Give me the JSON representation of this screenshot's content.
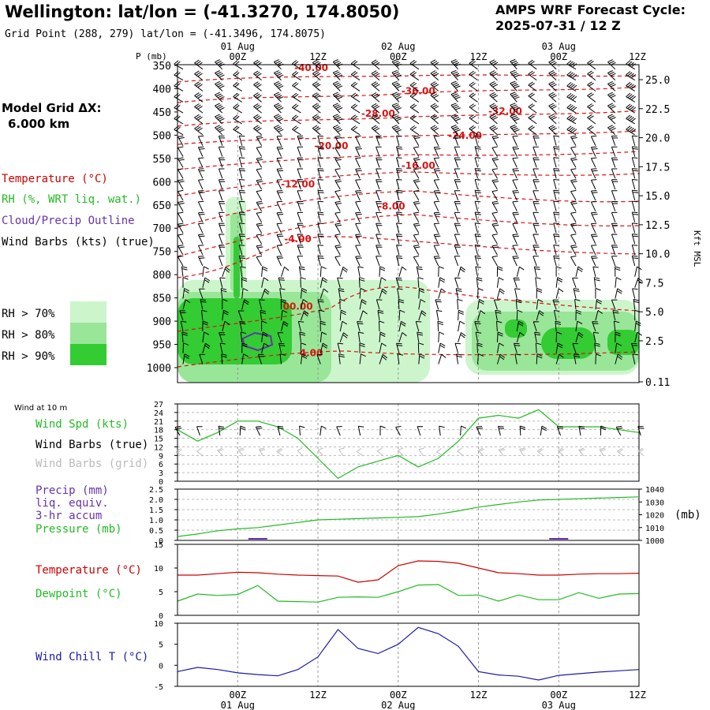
{
  "header": {
    "location_title": "Wellington:  lat/lon = (-41.3270, 174.8050)",
    "grid_point": "Grid Point (288, 279) lat/lon = (-41.3496, 174.8075)",
    "model_title": "AMPS WRF Forecast Cycle:",
    "model_cycle": "2025-07-31 / 12  Z"
  },
  "time_axis": {
    "ticks": [
      {
        "hour": 0,
        "label": "00Z",
        "date": "01 Aug"
      },
      {
        "hour": 12,
        "label": "12Z",
        "date": ""
      },
      {
        "hour": 24,
        "label": "00Z",
        "date": "02 Aug"
      },
      {
        "hour": 36,
        "label": "12Z",
        "date": ""
      },
      {
        "hour": 48,
        "label": "00Z",
        "date": "03 Aug"
      },
      {
        "hour": 60,
        "label": "12Z",
        "date": ""
      }
    ],
    "start_hour": -9,
    "end_hour": 60
  },
  "legend_left": {
    "model_grid_label": "Model Grid ΔX:",
    "model_grid_value": "6.000 km",
    "temperature": "Temperature (°C)",
    "rh": "RH (%, WRT liq. wat.)",
    "cloud": "Cloud/Precip Outline",
    "wind": "Wind Barbs (kts) (true)",
    "rh_levels": [
      {
        "label": "RH > 70%",
        "color": "#ccf5cc"
      },
      {
        "label": "RH > 80%",
        "color": "#99e699"
      },
      {
        "label": "RH > 90%",
        "color": "#33cc33"
      }
    ],
    "colors": {
      "temperature": "#cc0000",
      "rh": "#22bb22",
      "cloud": "#6633aa",
      "wind": "#000000"
    }
  },
  "panels": {
    "wind": {
      "title": "Wind at 10 m",
      "spd": "Wind Spd (kts)",
      "barbs_true": "Wind Barbs (true)",
      "barbs_grid": "Wind Barbs (grid)"
    },
    "precip": {
      "l1": "Precip (mm)",
      "l2": "liq. equiv.",
      "l3": "3-hr accum",
      "pres": "Pressure (mb)",
      "unit": "(mb)"
    },
    "temp": {
      "t": "Temperature (°C)",
      "d": "Dewpoint (°C)"
    },
    "chill": {
      "t": "Wind Chill T (°C)"
    }
  },
  "chart_data": [
    {
      "type": "contour",
      "name": "cross-section",
      "y_axis_label": "P (mb)",
      "pressure_ticks": [
        350,
        400,
        450,
        500,
        550,
        600,
        650,
        700,
        750,
        800,
        850,
        900,
        950,
        1000
      ],
      "height_axis_label": "Kft MSL",
      "height_ticks": [
        "25.0",
        "22.5",
        "20.0",
        "17.5",
        "15.0",
        "12.5",
        "10.0",
        "7.5",
        "5.0",
        "2.5",
        "0.11"
      ],
      "temperature_contour_labels": [
        {
          "label": "-40.00",
          "hour": 11,
          "p": 362
        },
        {
          "label": "-36.00",
          "hour": 27,
          "p": 412
        },
        {
          "label": "-32.00",
          "hour": 40,
          "p": 455
        },
        {
          "label": "-28.00",
          "hour": 21,
          "p": 460
        },
        {
          "label": "-24.00",
          "hour": 34,
          "p": 508
        },
        {
          "label": "-20.00",
          "hour": 14,
          "p": 530
        },
        {
          "label": "-16.00",
          "hour": 27,
          "p": 572
        },
        {
          "label": "-12.00",
          "hour": 9,
          "p": 612
        },
        {
          "label": "-8.00",
          "hour": 23,
          "p": 660
        },
        {
          "label": "-4.00",
          "hour": 9,
          "p": 730
        },
        {
          "label": "00.00",
          "hour": 9,
          "p": 875
        },
        {
          "label": "4.00",
          "hour": 11,
          "p": 975
        }
      ]
    },
    {
      "type": "line",
      "name": "wind-speed",
      "ylim": [
        0,
        27
      ],
      "yticks": [
        0,
        3,
        6,
        9,
        12,
        15,
        18,
        21,
        24,
        27
      ],
      "x_hours": [
        -9,
        -6,
        -3,
        0,
        3,
        6,
        9,
        12,
        15,
        18,
        21,
        24,
        27,
        30,
        33,
        36,
        39,
        42,
        45,
        48,
        51,
        54,
        57,
        60
      ],
      "series": [
        {
          "name": "Wind Spd (kts)",
          "color": "#22bb22",
          "values": [
            18,
            14,
            17,
            21,
            21,
            19,
            15,
            8,
            1,
            5,
            7,
            9,
            5,
            8,
            14,
            22,
            23,
            22,
            25,
            19,
            19,
            19,
            18,
            17
          ]
        }
      ]
    },
    {
      "type": "line",
      "name": "precip-pressure",
      "precip_ylim": [
        0,
        2.5
      ],
      "precip_yticks": [
        "0",
        "0.5",
        "1.0",
        "1.5",
        "2.0",
        "2.5"
      ],
      "pressure_ylim": [
        1000,
        1040
      ],
      "pressure_yticks": [
        1000,
        1010,
        1020,
        1030,
        1040
      ],
      "x_hours": [
        -9,
        -6,
        -3,
        0,
        3,
        6,
        9,
        12,
        15,
        18,
        21,
        24,
        27,
        30,
        33,
        36,
        39,
        42,
        45,
        48,
        51,
        54,
        57,
        60
      ],
      "series": [
        {
          "name": "Pressure (mb)",
          "color": "#22bb22",
          "values": [
            1003,
            1005,
            1007.5,
            1009,
            1010,
            1012,
            1014,
            1016,
            1016.5,
            1017,
            1017.5,
            1018,
            1018.5,
            1020.5,
            1023,
            1026,
            1028,
            1030,
            1031.5,
            1032,
            1032.5,
            1033,
            1033.5,
            1034
          ]
        },
        {
          "name": "Precip (mm)",
          "color": "#6633aa",
          "values": [
            0,
            0,
            0,
            0,
            0.02,
            0,
            0,
            0,
            0,
            0,
            0,
            0,
            0,
            0,
            0,
            0,
            0,
            0,
            0,
            0.02,
            0,
            0,
            0,
            0
          ]
        }
      ]
    },
    {
      "type": "line",
      "name": "temperature-dewpoint",
      "ylim": [
        0,
        15
      ],
      "yticks": [
        0,
        5,
        10,
        15
      ],
      "x_hours": [
        -9,
        -6,
        -3,
        0,
        3,
        6,
        9,
        12,
        15,
        18,
        21,
        24,
        27,
        30,
        33,
        36,
        39,
        42,
        45,
        48,
        51,
        54,
        57,
        60
      ],
      "series": [
        {
          "name": "Temperature (°C)",
          "color": "#cc0000",
          "values": [
            8.5,
            8.5,
            8.8,
            9.1,
            9,
            8.7,
            8.5,
            8.4,
            8.3,
            7,
            7.5,
            10.5,
            11.5,
            11.4,
            11,
            10,
            9,
            8.8,
            8.5,
            8.5,
            8.7,
            8.8,
            8.8,
            8.9
          ]
        },
        {
          "name": "Dewpoint (°C)",
          "color": "#22bb22",
          "values": [
            3,
            4.5,
            4.2,
            4.4,
            6.3,
            3,
            2.9,
            2.8,
            3.8,
            3.9,
            3.8,
            5,
            6.4,
            6.5,
            4.2,
            4.3,
            3,
            4.3,
            3.3,
            3.3,
            4.8,
            3.6,
            4.5,
            4.6
          ]
        }
      ]
    },
    {
      "type": "line",
      "name": "wind-chill",
      "ylim": [
        -5,
        10
      ],
      "yticks": [
        -5,
        0,
        5,
        10
      ],
      "x_hours": [
        -9,
        -6,
        -3,
        0,
        3,
        6,
        9,
        12,
        15,
        18,
        21,
        24,
        27,
        30,
        33,
        36,
        39,
        42,
        45,
        48,
        51,
        54,
        57,
        60
      ],
      "series": [
        {
          "name": "Wind Chill T (°C)",
          "color": "#1a1aaa",
          "values": [
            -1.5,
            -0.5,
            -1,
            -1.8,
            -2.2,
            -2.5,
            -1,
            2,
            8.5,
            4,
            2.8,
            5,
            9,
            7.5,
            4.5,
            -1.5,
            -2.3,
            -2.6,
            -3.5,
            -2.4,
            -2,
            -1.6,
            -1.3,
            -1
          ]
        }
      ]
    }
  ]
}
